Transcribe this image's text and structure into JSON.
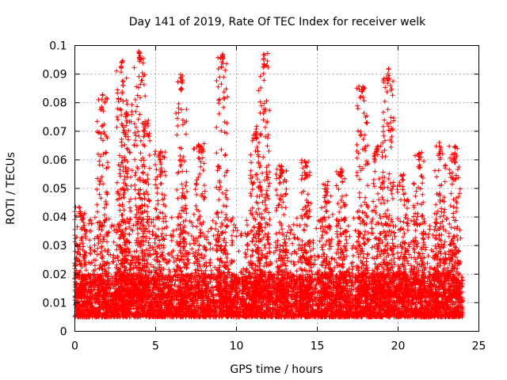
{
  "chart_data": {
    "type": "scatter",
    "title": "Day 141 of 2019, Rate Of TEC Index for receiver welk",
    "xlabel": "GPS time / hours",
    "ylabel": "ROTI / TECUs",
    "xlim": [
      0,
      25
    ],
    "ylim": [
      0,
      0.1
    ],
    "xticks": [
      0,
      5,
      10,
      15,
      20,
      25
    ],
    "xtick_labels": [
      "0",
      "5",
      "10",
      "15",
      "20",
      "25"
    ],
    "yticks": [
      0,
      0.01,
      0.02,
      0.03,
      0.04,
      0.05,
      0.06,
      0.07,
      0.08,
      0.09,
      0.1
    ],
    "ytick_labels": [
      "0",
      "0.01",
      "0.02",
      "0.03",
      "0.04",
      "0.05",
      "0.06",
      "0.07",
      "0.08",
      "0.09",
      "0.1"
    ],
    "grid": true,
    "marker": "+",
    "color": "#ff0000",
    "data_x_range": [
      0,
      24
    ],
    "baseline_band": [
      0.005,
      0.02
    ],
    "peaks": [
      {
        "x": 0.3,
        "y": 0.044
      },
      {
        "x": 1.7,
        "y": 0.083
      },
      {
        "x": 2.9,
        "y": 0.095
      },
      {
        "x": 3.2,
        "y": 0.081
      },
      {
        "x": 4.0,
        "y": 0.099
      },
      {
        "x": 4.3,
        "y": 0.074
      },
      {
        "x": 5.3,
        "y": 0.063
      },
      {
        "x": 6.6,
        "y": 0.09
      },
      {
        "x": 7.7,
        "y": 0.066
      },
      {
        "x": 9.1,
        "y": 0.097
      },
      {
        "x": 11.2,
        "y": 0.072
      },
      {
        "x": 11.7,
        "y": 0.098
      },
      {
        "x": 12.8,
        "y": 0.058
      },
      {
        "x": 14.3,
        "y": 0.06
      },
      {
        "x": 15.6,
        "y": 0.053
      },
      {
        "x": 16.5,
        "y": 0.058
      },
      {
        "x": 17.8,
        "y": 0.086
      },
      {
        "x": 18.7,
        "y": 0.065
      },
      {
        "x": 19.4,
        "y": 0.092
      },
      {
        "x": 20.3,
        "y": 0.055
      },
      {
        "x": 21.3,
        "y": 0.063
      },
      {
        "x": 22.6,
        "y": 0.066
      },
      {
        "x": 23.5,
        "y": 0.065
      }
    ]
  }
}
